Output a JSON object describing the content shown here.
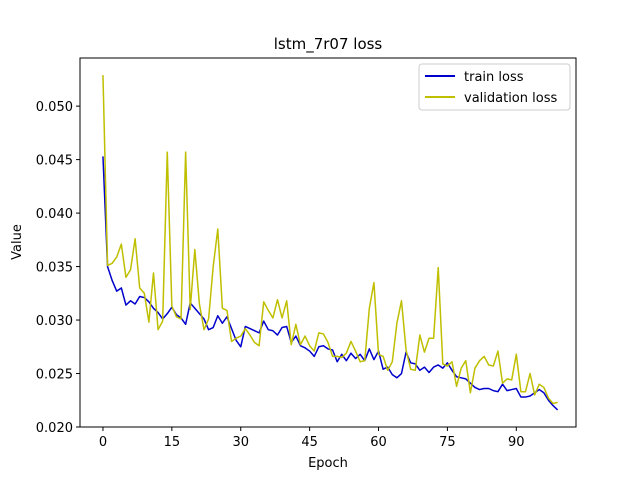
{
  "chart_data": {
    "type": "line",
    "title": "lstm_7r07 loss",
    "xlabel": "Epoch",
    "ylabel": "Value",
    "xlim": [
      -5,
      103
    ],
    "ylim": [
      0.02,
      0.0545
    ],
    "xticks": [
      0,
      15,
      30,
      45,
      60,
      75,
      90
    ],
    "yticks": [
      0.02,
      0.025,
      0.03,
      0.035,
      0.04,
      0.045,
      0.05
    ],
    "ytick_labels": [
      "0.020",
      "0.025",
      "0.030",
      "0.035",
      "0.040",
      "0.045",
      "0.050"
    ],
    "grid": false,
    "legend_position": "top-right",
    "x": [
      0,
      1,
      2,
      3,
      4,
      5,
      6,
      7,
      8,
      9,
      10,
      11,
      12,
      13,
      14,
      15,
      16,
      17,
      18,
      19,
      20,
      21,
      22,
      23,
      24,
      25,
      26,
      27,
      28,
      29,
      30,
      31,
      32,
      33,
      34,
      35,
      36,
      37,
      38,
      39,
      40,
      41,
      42,
      43,
      44,
      45,
      46,
      47,
      48,
      49,
      50,
      51,
      52,
      53,
      54,
      55,
      56,
      57,
      58,
      59,
      60,
      61,
      62,
      63,
      64,
      65,
      66,
      67,
      68,
      69,
      70,
      71,
      72,
      73,
      74,
      75,
      76,
      77,
      78,
      79,
      80,
      81,
      82,
      83,
      84,
      85,
      86,
      87,
      88,
      89,
      90,
      91,
      92,
      93,
      94,
      95,
      96,
      97,
      98,
      99
    ],
    "series": [
      {
        "name": "train loss",
        "color": "#0000cc",
        "values": [
          0.0453,
          0.035,
          0.0337,
          0.0327,
          0.033,
          0.0314,
          0.0318,
          0.0315,
          0.0322,
          0.0321,
          0.0317,
          0.0311,
          0.0307,
          0.0301,
          0.0306,
          0.0312,
          0.0305,
          0.0302,
          0.0296,
          0.0316,
          0.0311,
          0.0306,
          0.0301,
          0.0291,
          0.0293,
          0.0304,
          0.0297,
          0.0303,
          0.0292,
          0.0281,
          0.0275,
          0.0294,
          0.0292,
          0.029,
          0.0288,
          0.0299,
          0.0291,
          0.029,
          0.0286,
          0.0293,
          0.0294,
          0.0279,
          0.0285,
          0.0276,
          0.0274,
          0.0271,
          0.0266,
          0.0275,
          0.0276,
          0.0273,
          0.0272,
          0.0261,
          0.0268,
          0.0262,
          0.0269,
          0.0264,
          0.0268,
          0.0262,
          0.0273,
          0.0263,
          0.0271,
          0.0254,
          0.0256,
          0.0249,
          0.0246,
          0.025,
          0.027,
          0.026,
          0.0259,
          0.0253,
          0.0256,
          0.0251,
          0.0256,
          0.0258,
          0.0255,
          0.026,
          0.0253,
          0.0247,
          0.0246,
          0.0245,
          0.0241,
          0.0237,
          0.0235,
          0.0236,
          0.0236,
          0.0234,
          0.0233,
          0.024,
          0.0234,
          0.0235,
          0.0236,
          0.0228,
          0.0228,
          0.0229,
          0.0232,
          0.0235,
          0.0232,
          0.0225,
          0.022,
          0.0216
        ]
      },
      {
        "name": "validation loss",
        "color": "#bfbf00",
        "values": [
          0.0529,
          0.0351,
          0.0353,
          0.0359,
          0.0371,
          0.034,
          0.0347,
          0.0376,
          0.033,
          0.0325,
          0.0298,
          0.0344,
          0.0291,
          0.0299,
          0.0457,
          0.0313,
          0.0303,
          0.0301,
          0.0457,
          0.031,
          0.0366,
          0.0315,
          0.0291,
          0.0301,
          0.035,
          0.0385,
          0.0311,
          0.0309,
          0.028,
          0.0283,
          0.0285,
          0.0292,
          0.0286,
          0.0279,
          0.0276,
          0.0317,
          0.0309,
          0.0302,
          0.0319,
          0.0302,
          0.0318,
          0.0277,
          0.0296,
          0.0277,
          0.0285,
          0.0276,
          0.0271,
          0.0288,
          0.0287,
          0.0279,
          0.0266,
          0.0266,
          0.0265,
          0.0269,
          0.028,
          0.0271,
          0.0261,
          0.0262,
          0.0311,
          0.0335,
          0.0268,
          0.0266,
          0.0253,
          0.0261,
          0.0297,
          0.0318,
          0.0272,
          0.0254,
          0.0253,
          0.0286,
          0.027,
          0.0283,
          0.0283,
          0.0349,
          0.0259,
          0.0257,
          0.0261,
          0.0238,
          0.0255,
          0.0262,
          0.0232,
          0.0255,
          0.0262,
          0.0266,
          0.0258,
          0.0257,
          0.0271,
          0.0241,
          0.0245,
          0.0244,
          0.0268,
          0.0233,
          0.0233,
          0.025,
          0.023,
          0.024,
          0.0237,
          0.0227,
          0.0222,
          0.0223
        ]
      }
    ]
  }
}
